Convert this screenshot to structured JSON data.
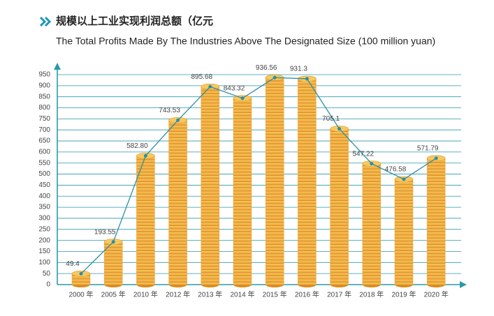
{
  "chart_data": {
    "type": "coin-bar-line",
    "title": "规模以上工业实现利润总额（亿元",
    "subtitle": "The Total Profits Made By The Industries Above The Designated Size (100 million yuan)",
    "categories": [
      "2000 年",
      "2005 年",
      "2010 年",
      "2012 年",
      "2013 年",
      "2014 年",
      "2015 年",
      "2016 年",
      "2017 年",
      "2018 年",
      "2019 年",
      "2020 年"
    ],
    "values": [
      49.4,
      193.55,
      582.8,
      743.53,
      895.68,
      843.32,
      936.56,
      931.3,
      705.1,
      547.22,
      476.58,
      571.79
    ],
    "value_labels": [
      "49.4",
      "193.55",
      "582.80",
      "743.53",
      "895.68",
      "843.32",
      "936.56",
      "931.3",
      "705.1",
      "547.22",
      "476.58",
      "571.79"
    ],
    "color": "#f0a630",
    "line_color": "#2b8fa6",
    "ylim": [
      0,
      950
    ],
    "yticks": [
      0,
      50,
      100,
      150,
      200,
      250,
      300,
      350,
      400,
      450,
      500,
      550,
      600,
      650,
      700,
      750,
      800,
      850,
      900,
      950
    ],
    "grid": true
  }
}
